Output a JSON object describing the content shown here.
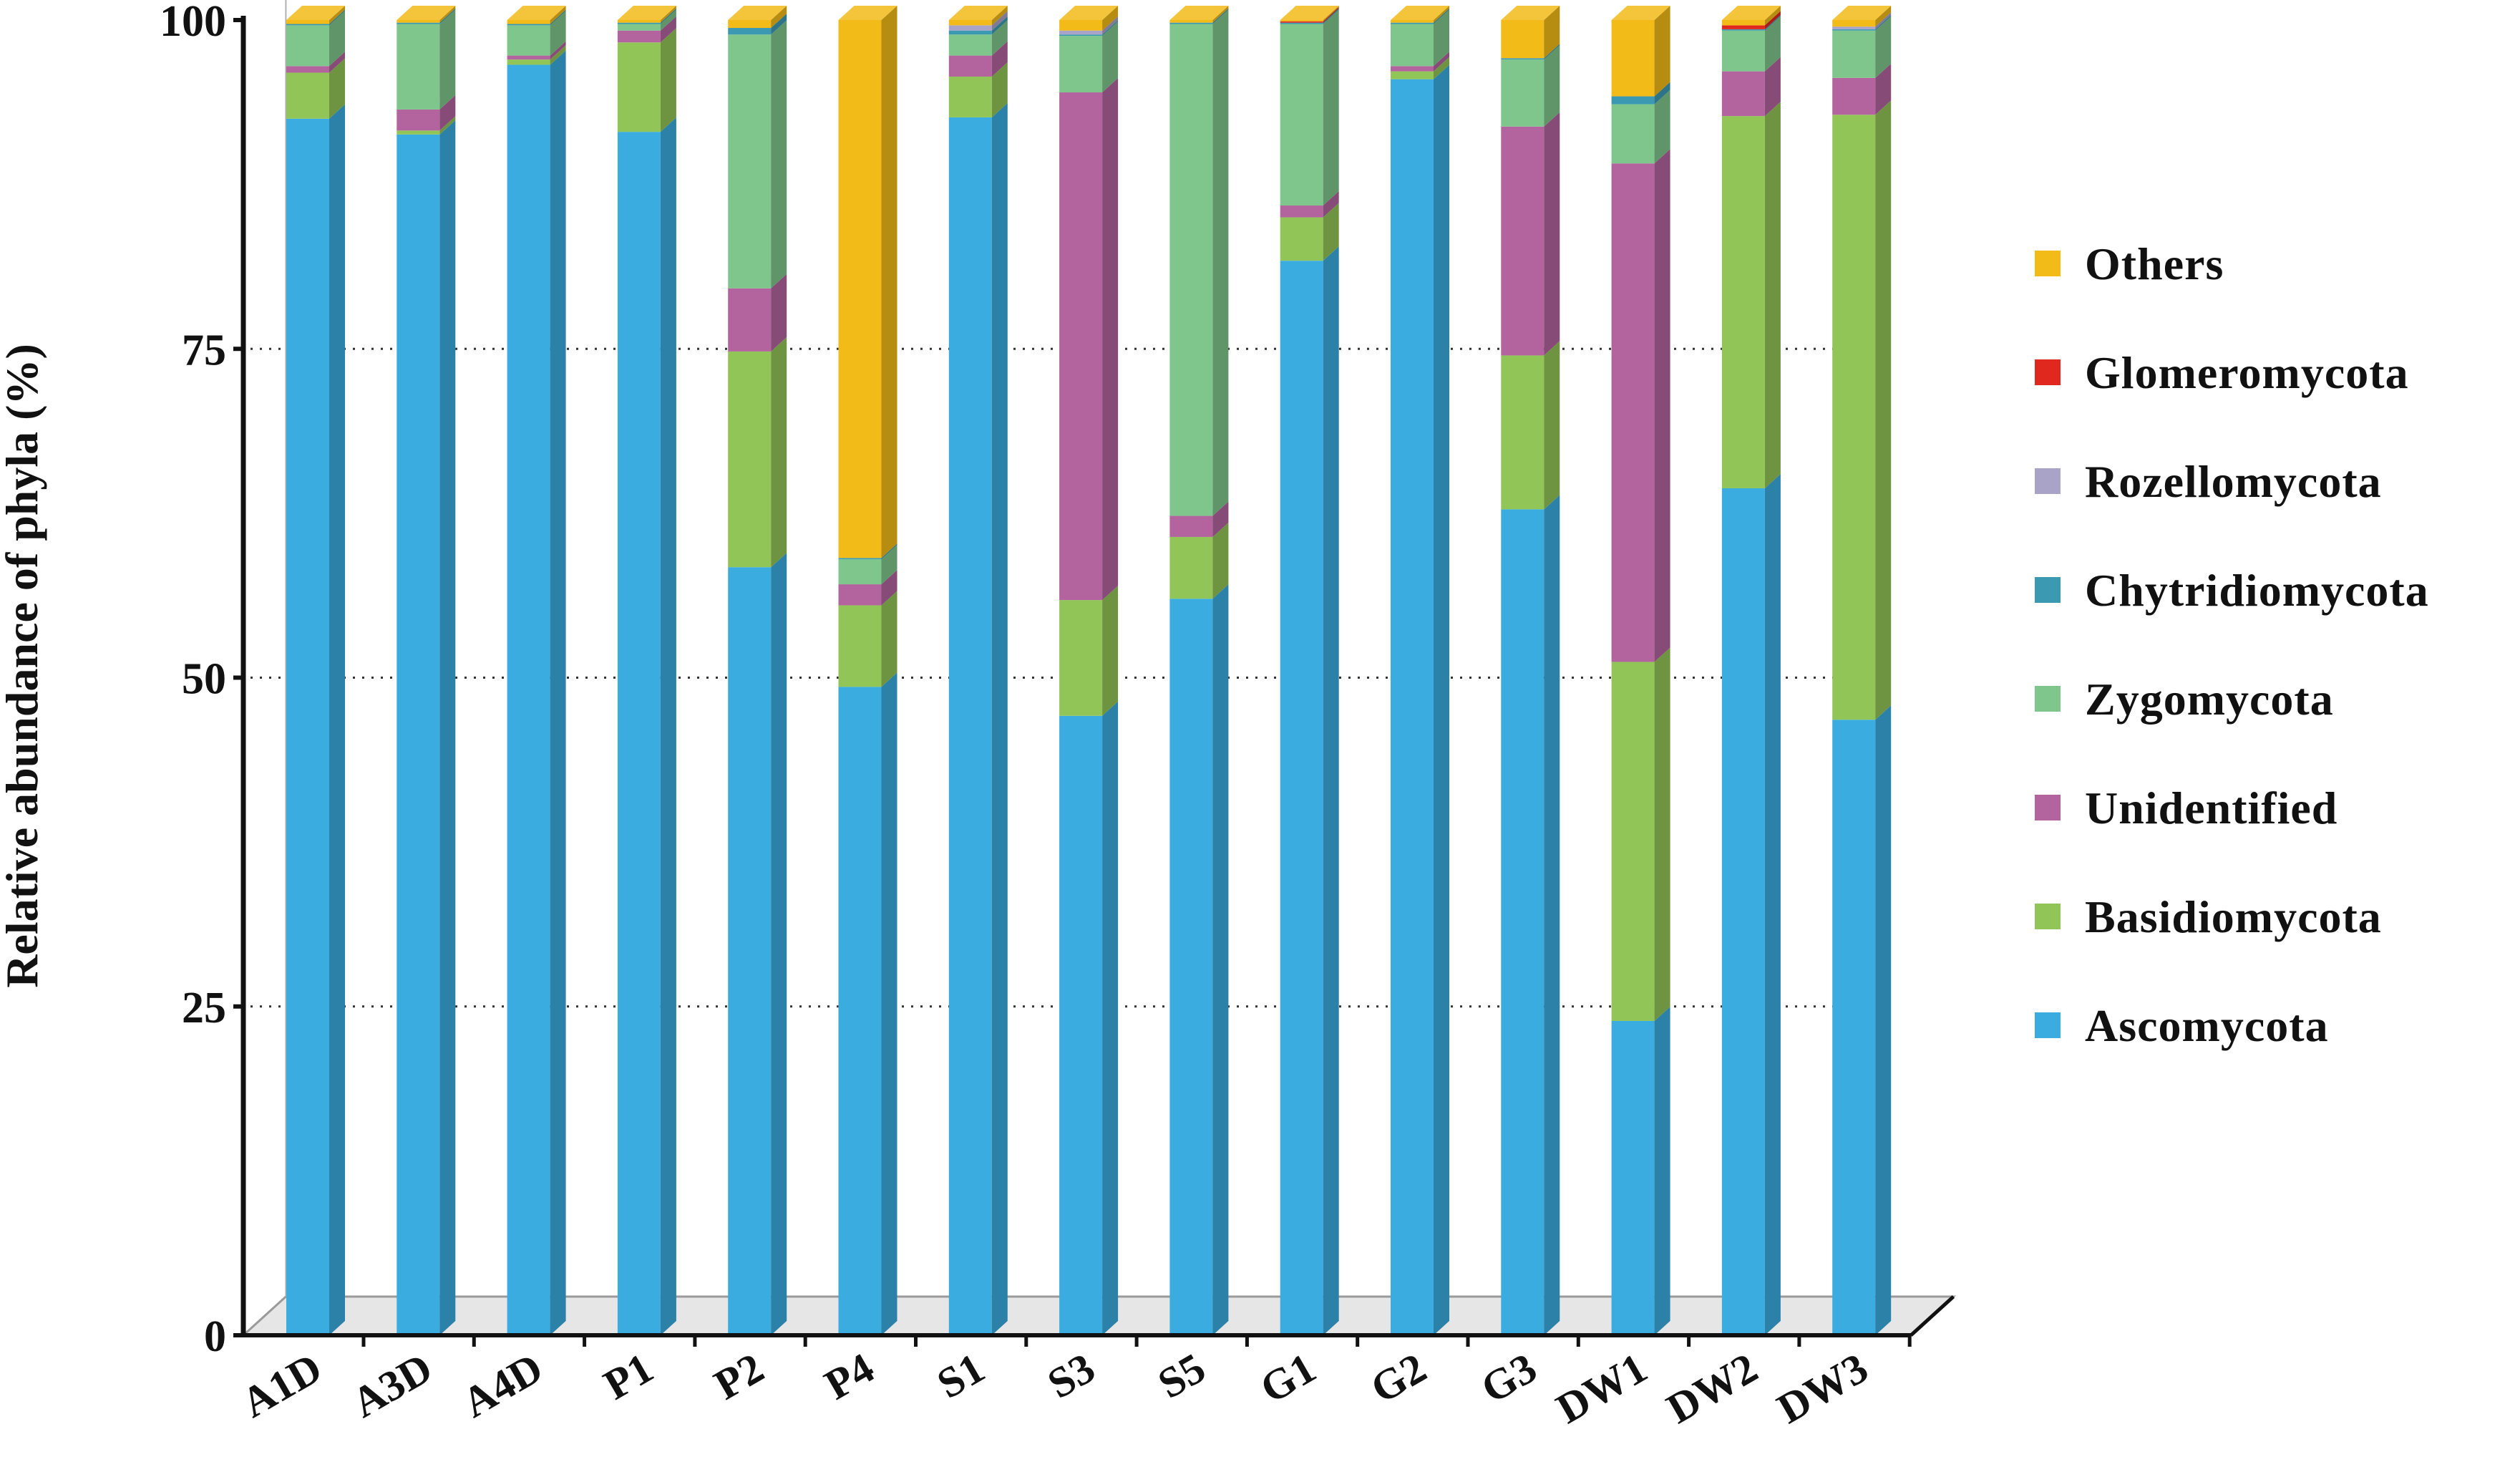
{
  "chart_data": {
    "type": "bar",
    "stacked": true,
    "style": "3d-columns",
    "title": "",
    "xlabel": "",
    "ylabel": "Relative abundance of phyla (%)",
    "ylim": [
      0,
      100
    ],
    "yticks": [
      "0",
      "25",
      "50",
      "75",
      "100"
    ],
    "grid": "dotted horizontal lines at 25, 50, 75",
    "legend_position": "right",
    "categories": [
      "A1D",
      "A3D",
      "A4D",
      "P1",
      "P2",
      "P4",
      "S1",
      "S3",
      "S5",
      "G1",
      "G2",
      "G3",
      "DW1",
      "DW2",
      "DW3"
    ],
    "series": [
      {
        "name": "Ascomycota",
        "color": "#3aace0",
        "values": [
          92.5,
          91.3,
          96.6,
          91.5,
          58.4,
          49.3,
          92.6,
          47.1,
          56.0,
          81.7,
          95.5,
          62.8,
          23.9,
          64.4,
          46.8
        ]
      },
      {
        "name": "Basidiomycota",
        "color": "#92c557",
        "values": [
          3.5,
          0.3,
          0.4,
          6.8,
          16.4,
          6.2,
          3.1,
          8.8,
          4.7,
          3.3,
          0.6,
          11.7,
          27.3,
          28.3,
          46.0
        ]
      },
      {
        "name": "Unidentified",
        "color": "#b3649e",
        "values": [
          0.5,
          1.6,
          0.3,
          0.9,
          4.8,
          1.6,
          1.6,
          38.6,
          1.6,
          0.9,
          0.4,
          17.4,
          37.9,
          3.4,
          2.8
        ]
      },
      {
        "name": "Zygomycota",
        "color": "#7ec68c",
        "values": [
          3.1,
          6.5,
          2.3,
          0.5,
          19.3,
          1.9,
          1.6,
          4.3,
          37.4,
          13.8,
          3.2,
          5.1,
          4.5,
          3.1,
          3.6
        ]
      },
      {
        "name": "Chytridiomycota",
        "color": "#3b9ab2",
        "values": [
          0.1,
          0.1,
          0.1,
          0.1,
          0.5,
          0.1,
          0.3,
          0.1,
          0.1,
          0.1,
          0.1,
          0.1,
          0.6,
          0.1,
          0.1
        ]
      },
      {
        "name": "Rozellomycota",
        "color": "#a9a3c8",
        "values": [
          0.0,
          0.0,
          0.0,
          0.0,
          0.0,
          0.0,
          0.4,
          0.3,
          0.0,
          0.0,
          0.0,
          0.0,
          0.0,
          0.0,
          0.2
        ]
      },
      {
        "name": "Glomeromycota",
        "color": "#e0281e",
        "values": [
          0.0,
          0.0,
          0.0,
          0.0,
          0.0,
          0.0,
          0.0,
          0.0,
          0.0,
          0.1,
          0.0,
          0.0,
          0.0,
          0.3,
          0.0
        ]
      },
      {
        "name": "Others",
        "color": "#f2bb17",
        "values": [
          0.3,
          0.2,
          0.3,
          0.2,
          0.6,
          40.9,
          0.4,
          0.8,
          0.2,
          0.1,
          0.2,
          2.9,
          5.8,
          0.4,
          0.5
        ]
      }
    ],
    "legend_order": [
      "Others",
      "Glomeromycota",
      "Rozellomycota",
      "Chytridiomycota",
      "Zygomycota",
      "Unidentified",
      "Basidiomycota",
      "Ascomycota"
    ]
  }
}
